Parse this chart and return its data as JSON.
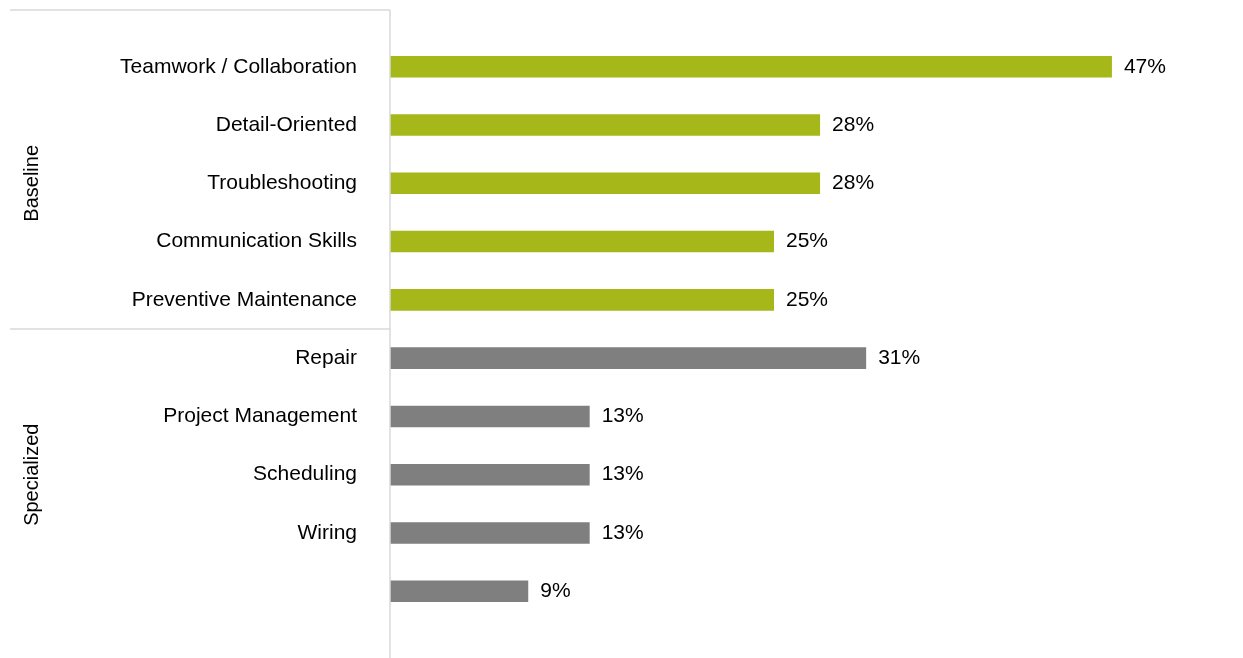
{
  "chart_data": {
    "type": "bar",
    "orientation": "horizontal",
    "categories": [
      "Teamwork / Collaboration",
      "Detail-Oriented",
      "Troubleshooting",
      "Communication Skills",
      "Preventive Maintenance",
      "Repair",
      "Project Management",
      "Scheduling",
      "Wiring",
      null
    ],
    "annotations": [
      "Baseline",
      "Specialized"
    ],
    "series": [
      {
        "color": "#a5b719",
        "values": [
          47,
          28,
          28,
          25,
          25,
          null,
          null,
          null,
          null,
          null
        ],
        "value_labels": [
          "47%",
          "28%",
          "28%",
          "25%",
          "25%",
          null,
          null,
          null,
          null,
          null
        ]
      },
      {
        "color": "#7f7f7f",
        "values": [
          null,
          null,
          null,
          null,
          null,
          31,
          13,
          13,
          13,
          9
        ],
        "value_labels": [
          null,
          null,
          null,
          null,
          null,
          "31%",
          "13%",
          "13%",
          "13%",
          "9%"
        ]
      }
    ]
  }
}
